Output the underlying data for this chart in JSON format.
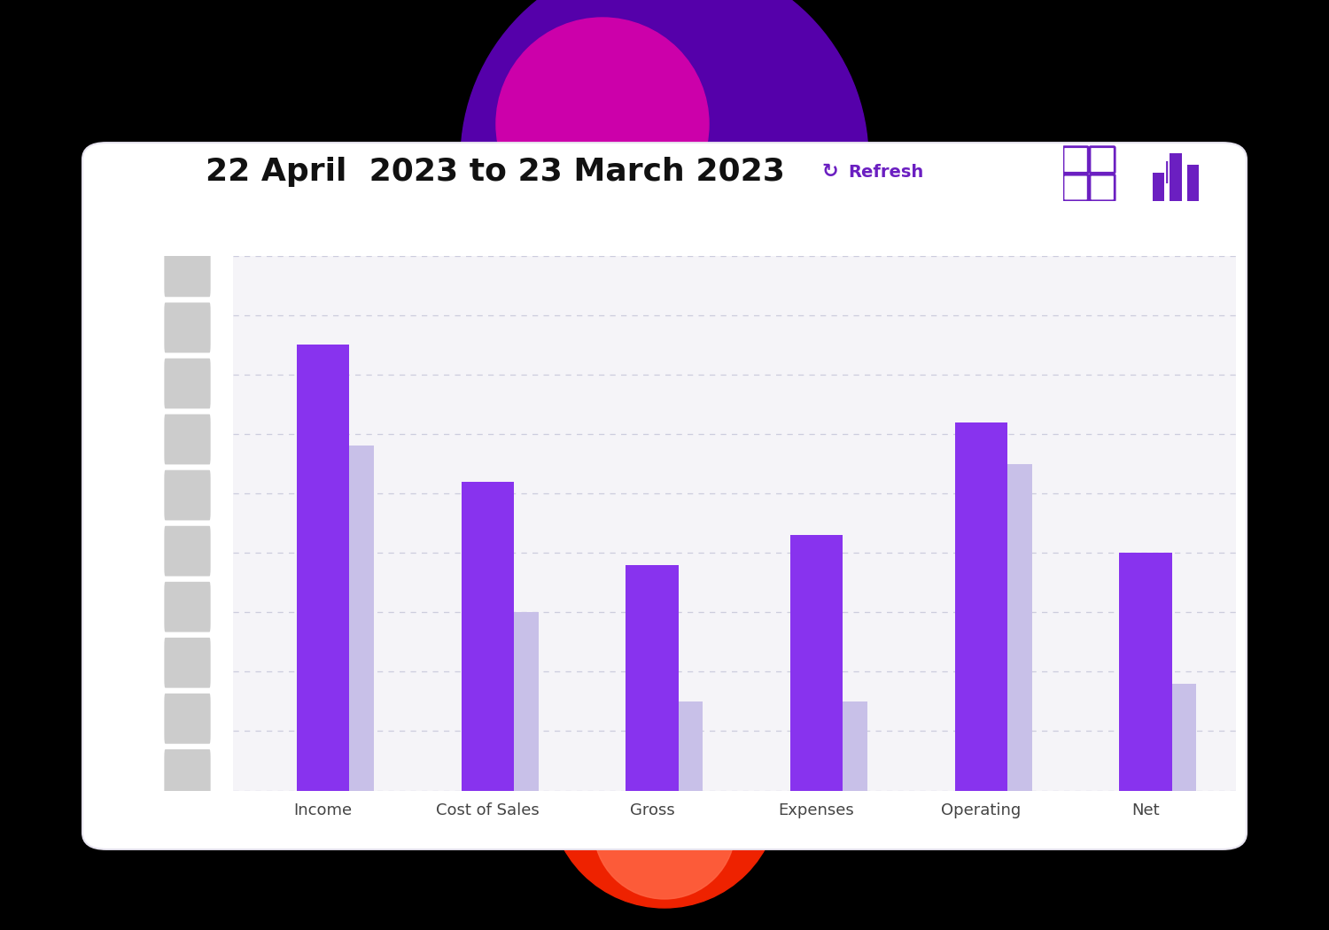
{
  "title": "22 April  2023 to 23 March 2023",
  "refresh_label": "Refresh",
  "categories": [
    "Income",
    "Cost of Sales",
    "Gross",
    "Expenses",
    "Operating",
    "Net"
  ],
  "bar_values": [
    75,
    52,
    38,
    43,
    62,
    40
  ],
  "shadow_values": [
    58,
    30,
    15,
    15,
    55,
    18
  ],
  "bar_color": "#8833EE",
  "shadow_color": "#C8C0E8",
  "bg_outer": "#000000",
  "bg_card": "#FFFFFF",
  "bg_chart_inner": "#F5F4F8",
  "title_fontsize": 26,
  "label_fontsize": 13,
  "grid_color": "#CCCCDD",
  "ylim": [
    0,
    90
  ],
  "accent_color": "#6B1FC1",
  "refresh_color": "#6B1FC1",
  "pill_color": "#CCCCCC",
  "n_pills": 10
}
